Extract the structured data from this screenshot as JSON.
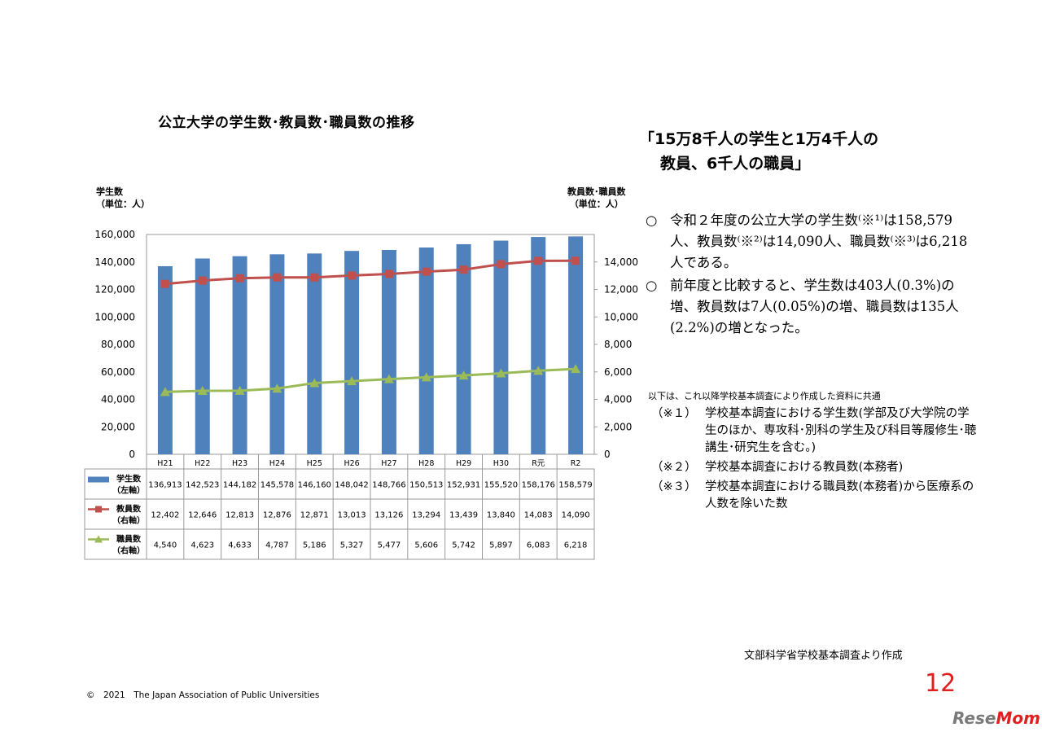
{
  "chart_data": {
    "type": "bar+line",
    "title": "公立大学の学生数･教員数･職員数の推移",
    "y_left_label": [
      "学生数",
      "（単位：人）"
    ],
    "y_right_label": [
      "教員数･職員数",
      "（単位：人）"
    ],
    "y_left_range": [
      0,
      160000
    ],
    "y_left_ticks": [
      "160,000",
      "140,000",
      "120,000",
      "100,000",
      "80,000",
      "60,000",
      "40,000",
      "20,000",
      "0"
    ],
    "y_right_range": [
      0,
      16000
    ],
    "y_right_ticks": [
      "14,000",
      "12,000",
      "10,000",
      "8,000",
      "6,000",
      "4,000",
      "2,000",
      "0"
    ],
    "categories": [
      "H21",
      "H22",
      "H23",
      "H24",
      "H25",
      "H26",
      "H27",
      "H28",
      "H29",
      "H30",
      "R元",
      "R2"
    ],
    "series": [
      {
        "name": "学生数",
        "axis_note": "（左軸）",
        "type": "bar",
        "color": "#4f81bd",
        "values": [
          136913,
          142523,
          144182,
          145578,
          146160,
          148042,
          148766,
          150513,
          152931,
          155520,
          158176,
          158579
        ],
        "labels": [
          "136,913",
          "142,523",
          "144,182",
          "145,578",
          "146,160",
          "148,042",
          "148,766",
          "150,513",
          "152,931",
          "155,520",
          "158,176",
          "158,579"
        ]
      },
      {
        "name": "教員数",
        "axis_note": "（右軸）",
        "type": "line",
        "color": "#c0504d",
        "values": [
          12402,
          12646,
          12813,
          12876,
          12871,
          13013,
          13126,
          13294,
          13439,
          13840,
          14083,
          14090
        ],
        "labels": [
          "12,402",
          "12,646",
          "12,813",
          "12,876",
          "12,871",
          "13,013",
          "13,126",
          "13,294",
          "13,439",
          "13,840",
          "14,083",
          "14,090"
        ]
      },
      {
        "name": "職員数",
        "axis_note": "（右軸）",
        "type": "line",
        "color": "#9bbb59",
        "values": [
          4540,
          4623,
          4633,
          4787,
          5186,
          5327,
          5477,
          5606,
          5742,
          5897,
          6083,
          6218
        ],
        "labels": [
          "4,540",
          "4,623",
          "4,633",
          "4,787",
          "5,186",
          "5,327",
          "5,477",
          "5,606",
          "5,742",
          "5,897",
          "6,083",
          "6,218"
        ]
      }
    ],
    "data_table": true
  },
  "headline": {
    "line1": "「15万8千人の学生と1万4千人の",
    "line2": "教員、6千人の職員」"
  },
  "summary": [
    {
      "mark": "○",
      "text": "令和２年度の公立大学の学生数⁽※¹⁾は158,579人、教員数⁽※²⁾は14,090人、職員数⁽※³⁾は6,218人である。"
    },
    {
      "mark": "○",
      "text": "前年度と比較すると、学生数は403人(0.3%)の増、教員数は7人(0.05%)の増、職員数は135人(2.2%)の増となった。"
    }
  ],
  "basis_note": "以下は、これ以降学校基本調査により作成した資料に共通",
  "notes": [
    {
      "label": "（※１）",
      "text": "学校基本調査における学生数(学部及び大学院の学生のほか、専攻科･別科の学生及び科目等履修生･聴講生･研究生を含む。)"
    },
    {
      "label": "（※２）",
      "text": "学校基本調査における教員数(本務者)"
    },
    {
      "label": "（※３）",
      "text": "学校基本調査における職員数(本務者)から医療系の人数を除いた数"
    }
  ],
  "source": "文部科学省学校基本調査より作成",
  "page_number": "12",
  "copyright": "©　2021　The Japan Association of Public Universities",
  "brand": {
    "main": "Rese",
    "accent": "Mom"
  }
}
